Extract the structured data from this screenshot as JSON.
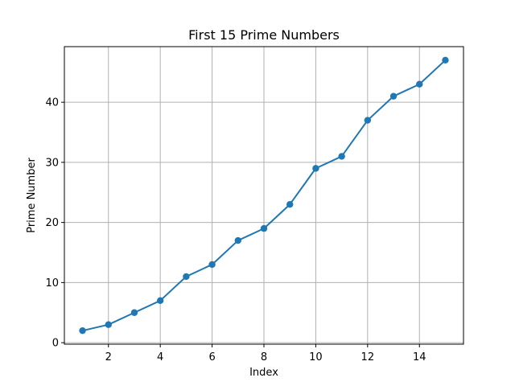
{
  "chart_data": {
    "type": "line",
    "title": "First 15 Prime Numbers",
    "xlabel": "Index",
    "ylabel": "Prime Number",
    "x": [
      1,
      2,
      3,
      4,
      5,
      6,
      7,
      8,
      9,
      10,
      11,
      12,
      13,
      14,
      15
    ],
    "series": [
      {
        "values": [
          2,
          3,
          5,
          7,
          11,
          13,
          17,
          19,
          23,
          29,
          31,
          37,
          41,
          43,
          47
        ],
        "color": "#1f77b4",
        "marker": "circle"
      }
    ],
    "xlim": [
      0.3,
      15.7
    ],
    "ylim": [
      -0.25,
      49.25
    ],
    "xticks": [
      2,
      4,
      6,
      8,
      10,
      12,
      14
    ],
    "yticks": [
      0,
      10,
      20,
      30,
      40
    ],
    "grid": true,
    "legend": false
  }
}
